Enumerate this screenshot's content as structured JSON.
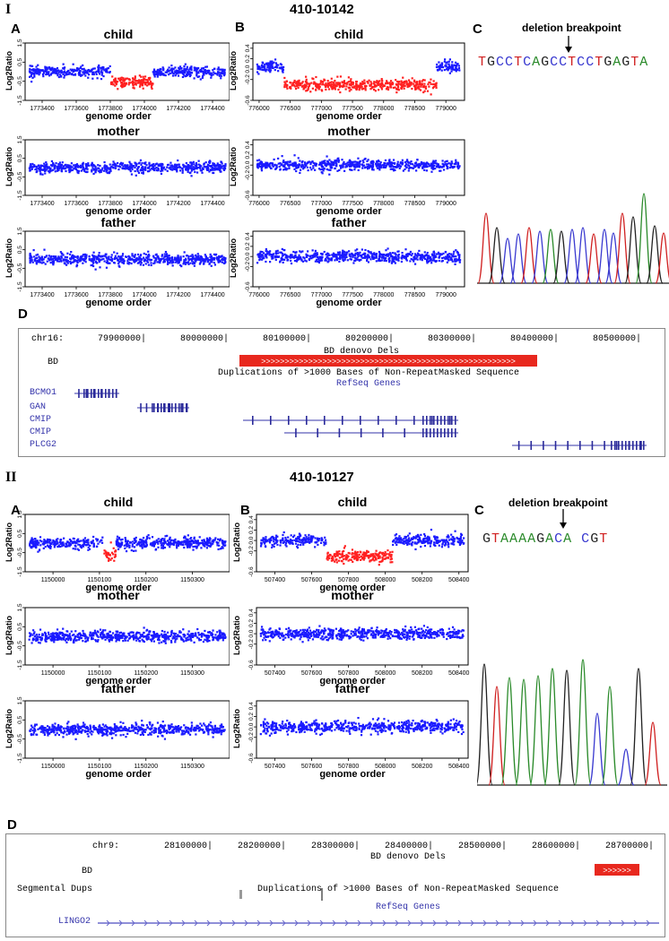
{
  "section1": {
    "roman": "I",
    "sample_id": "410-10142",
    "panel_a_letter": "A",
    "panel_b_letter": "B",
    "panel_c_letter": "C",
    "panel_d_letter": "D",
    "breakpoint_label": "deletion breakpoint",
    "sequence": "TGCCTCAGCCTCCTGAGTA",
    "browser": {
      "chrom": "chr16:",
      "coords": [
        "79900000",
        "80000000",
        "80100000",
        "80200000",
        "80300000",
        "80400000",
        "80500000"
      ],
      "bd_label": "BD",
      "bd_track": "BD denovo Dels",
      "dup_track": "Duplications of >1000 Bases of Non-RepeatMasked Sequence",
      "refseq_track": "RefSeq Genes",
      "genes": [
        "BCMO1",
        "GAN",
        "CMIP",
        "CMIP",
        "PLCG2"
      ]
    }
  },
  "section2": {
    "roman": "II",
    "sample_id": "410-10127",
    "panel_a_letter": "A",
    "panel_b_letter": "B",
    "panel_c_letter": "C",
    "panel_d_letter": "D",
    "breakpoint_label": "deletion breakpoint",
    "sequence": "GTAAAAGACA CGT",
    "browser": {
      "chrom": "chr9:",
      "coords": [
        "28100000",
        "28200000",
        "28300000",
        "28400000",
        "28500000",
        "28600000",
        "28700000"
      ],
      "bd_label": "BD",
      "bd_track": "BD denovo Dels",
      "seg_label": "Segmental Dups",
      "dup_track": "Duplications of >1000 Bases of Non-RepeatMasked Sequence",
      "refseq_track": "RefSeq Genes",
      "genes": [
        "LINGO2"
      ]
    }
  },
  "plot_labels": {
    "child": "child",
    "mother": "mother",
    "father": "father",
    "xlabel": "genome order",
    "ylabel": "Log2Ratio"
  },
  "chart_data": [
    {
      "id": "I-A-child",
      "type": "scatter",
      "title": "child",
      "xlabel": "genome order",
      "ylabel": "Log2Ratio",
      "xticks": [
        "1773400",
        "1773600",
        "1773800",
        "1774000",
        "1774200",
        "1774400"
      ],
      "yticks": [
        "-1.5",
        "-0.5",
        "0.5",
        "1.5"
      ],
      "xlim": [
        1773300,
        1774500
      ],
      "ylim": [
        -1.5,
        1.5
      ],
      "baseline": 0.0,
      "deletion": {
        "x": [
          1773800,
          1774050
        ],
        "level": -0.55
      },
      "colors": {
        "normal": "#1a1aff",
        "deleted": "#ff2020"
      }
    },
    {
      "id": "I-A-mother",
      "type": "scatter",
      "title": "mother",
      "xlabel": "genome order",
      "ylabel": "Log2Ratio",
      "xticks": [
        "1773400",
        "1773600",
        "1773800",
        "1774000",
        "1774200",
        "1774400"
      ],
      "yticks": [
        "-1.5",
        "-0.5",
        "0.5",
        "1.5"
      ],
      "xlim": [
        1773300,
        1774500
      ],
      "ylim": [
        -1.5,
        1.5
      ],
      "baseline": 0.0,
      "deletion": null
    },
    {
      "id": "I-A-father",
      "type": "scatter",
      "title": "father",
      "xlabel": "genome order",
      "ylabel": "Log2Ratio",
      "xticks": [
        "1773400",
        "1773600",
        "1773800",
        "1774000",
        "1774200",
        "1774400"
      ],
      "yticks": [
        "-1.5",
        "-0.5",
        "0.5",
        "1.5"
      ],
      "xlim": [
        1773300,
        1774500
      ],
      "ylim": [
        -1.5,
        1.5
      ],
      "baseline": 0.0,
      "deletion": null
    },
    {
      "id": "I-B-child",
      "type": "scatter",
      "title": "child",
      "xlabel": "genome order",
      "ylabel": "Log2Ratio",
      "xticks": [
        "776000",
        "776500",
        "777000",
        "777500",
        "778000",
        "778500",
        "779000"
      ],
      "yticks": [
        "-0.6",
        "-0.2",
        "0.0",
        "0.2",
        "0.4"
      ],
      "xlim": [
        775900,
        779300
      ],
      "ylim": [
        -0.6,
        0.5
      ],
      "baseline": 0.05,
      "deletion": {
        "x": [
          776400,
          778850
        ],
        "level": -0.3
      },
      "colors": {
        "normal": "#1a1aff",
        "deleted": "#ff2020"
      }
    },
    {
      "id": "I-B-mother",
      "type": "scatter",
      "title": "mother",
      "xlabel": "genome order",
      "ylabel": "Log2Ratio",
      "xticks": [
        "776000",
        "776500",
        "777000",
        "777500",
        "778000",
        "778500",
        "779000"
      ],
      "yticks": [
        "-0.6",
        "-0.2",
        "0.0",
        "0.2",
        "0.4"
      ],
      "xlim": [
        775900,
        779300
      ],
      "ylim": [
        -0.6,
        0.5
      ],
      "baseline": 0.0,
      "deletion": null
    },
    {
      "id": "I-B-father",
      "type": "scatter",
      "title": "father",
      "xlabel": "genome order",
      "ylabel": "Log2Ratio",
      "xticks": [
        "776000",
        "776500",
        "777000",
        "777500",
        "778000",
        "778500",
        "779000"
      ],
      "yticks": [
        "-0.6",
        "-0.2",
        "0.0",
        "0.2",
        "0.4"
      ],
      "xlim": [
        775900,
        779300
      ],
      "ylim": [
        -0.6,
        0.5
      ],
      "baseline": 0.0,
      "deletion": null
    },
    {
      "id": "II-A-child",
      "type": "scatter",
      "title": "child",
      "xlabel": "genome order",
      "ylabel": "Log2Ratio",
      "xticks": [
        "1150000",
        "1150100",
        "1150200",
        "1150300"
      ],
      "yticks": [
        "-1.5",
        "-0.5",
        "0.5",
        "1.5"
      ],
      "xlim": [
        1149940,
        1150380
      ],
      "ylim": [
        -1.5,
        1.5
      ],
      "baseline": 0.0,
      "deletion": {
        "x": [
          1150110,
          1150135
        ],
        "level": -0.6
      },
      "colors": {
        "normal": "#1a1aff",
        "deleted": "#ff2020"
      }
    },
    {
      "id": "II-A-mother",
      "type": "scatter",
      "title": "mother",
      "xlabel": "genome order",
      "ylabel": "Log2Ratio",
      "xticks": [
        "1150000",
        "1150100",
        "1150200",
        "1150300"
      ],
      "yticks": [
        "-1.5",
        "-0.5",
        "0.5",
        "1.5"
      ],
      "xlim": [
        1149940,
        1150380
      ],
      "ylim": [
        -1.5,
        1.5
      ],
      "baseline": 0.0,
      "deletion": null
    },
    {
      "id": "II-A-father",
      "type": "scatter",
      "title": "father",
      "xlabel": "genome order",
      "ylabel": "Log2Ratio",
      "xticks": [
        "1150000",
        "1150100",
        "1150200",
        "1150300"
      ],
      "yticks": [
        "-1.5",
        "-0.5",
        "0.5",
        "1.5"
      ],
      "xlim": [
        1149940,
        1150380
      ],
      "ylim": [
        -1.5,
        1.5
      ],
      "baseline": 0.0,
      "deletion": null
    },
    {
      "id": "II-B-child",
      "type": "scatter",
      "title": "child",
      "xlabel": "genome order",
      "ylabel": "Log2Ratio",
      "xticks": [
        "507400",
        "507600",
        "507800",
        "508000",
        "508200",
        "508400"
      ],
      "yticks": [
        "-0.6",
        "-0.2",
        "0.0",
        "0.2",
        "0.4"
      ],
      "xlim": [
        507300,
        508450
      ],
      "ylim": [
        -0.6,
        0.5
      ],
      "baseline": 0.0,
      "deletion": {
        "x": [
          507680,
          508040
        ],
        "level": -0.3
      },
      "colors": {
        "normal": "#1a1aff",
        "deleted": "#ff2020"
      }
    },
    {
      "id": "II-B-mother",
      "type": "scatter",
      "title": "mother",
      "xlabel": "genome order",
      "ylabel": "Log2Ratio",
      "xticks": [
        "507400",
        "507600",
        "507800",
        "508000",
        "508200",
        "508400"
      ],
      "yticks": [
        "-0.6",
        "-0.2",
        "0.0",
        "0.2",
        "0.4"
      ],
      "xlim": [
        507300,
        508450
      ],
      "ylim": [
        -0.6,
        0.5
      ],
      "baseline": 0.0,
      "deletion": null
    },
    {
      "id": "II-B-father",
      "type": "scatter",
      "title": "father",
      "xlabel": "genome order",
      "ylabel": "Log2Ratio",
      "xticks": [
        "507400",
        "507600",
        "507800",
        "508000",
        "508200",
        "508400"
      ],
      "yticks": [
        "-0.6",
        "-0.2",
        "0.0",
        "0.2",
        "0.4"
      ],
      "xlim": [
        507300,
        508450
      ],
      "ylim": [
        -0.6,
        0.5
      ],
      "baseline": 0.0,
      "deletion": null
    }
  ],
  "sequence_colors": {
    "A": "#2a8a2a",
    "C": "#3a3ad0",
    "G": "#222222",
    "T": "#d02020"
  }
}
